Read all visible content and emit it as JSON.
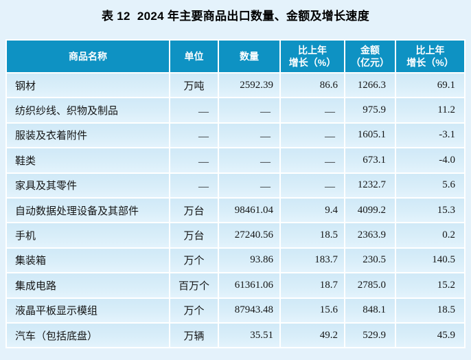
{
  "page": {
    "background_color": "#e4f2fb",
    "header_color": "#0e92c3",
    "header_text_color": "#ffffff",
    "row_color": "#d9eef9",
    "grid_line_color": "#ffffff",
    "body_text_color": "#151515"
  },
  "title": "表 12  2024 年主要商品出口数量、金额及增长速度",
  "table": {
    "columns": [
      {
        "key": "name",
        "label": "商品名称"
      },
      {
        "key": "unit",
        "label": "单位"
      },
      {
        "key": "quantity",
        "label": "数量"
      },
      {
        "key": "quantity_growth",
        "label": "比上年\n增长（%）"
      },
      {
        "key": "amount",
        "label": "金额\n（亿元）"
      },
      {
        "key": "amount_growth",
        "label": "比上年\n增长（%）"
      }
    ],
    "rows": [
      {
        "name": "钢材",
        "unit": "万吨",
        "quantity": "2592.39",
        "quantity_growth": "86.6",
        "amount": "1266.3",
        "amount_growth": "69.1"
      },
      {
        "name": "纺织纱线、织物及制品",
        "unit": "—",
        "quantity": "—",
        "quantity_growth": "—",
        "amount": "975.9",
        "amount_growth": "11.2"
      },
      {
        "name": "服装及衣着附件",
        "unit": "—",
        "quantity": "—",
        "quantity_growth": "—",
        "amount": "1605.1",
        "amount_growth": "-3.1"
      },
      {
        "name": "鞋类",
        "unit": "—",
        "quantity": "—",
        "quantity_growth": "—",
        "amount": "673.1",
        "amount_growth": "-4.0"
      },
      {
        "name": "家具及其零件",
        "unit": "—",
        "quantity": "—",
        "quantity_growth": "—",
        "amount": "1232.7",
        "amount_growth": "5.6"
      },
      {
        "name": "自动数据处理设备及其部件",
        "unit": "万台",
        "quantity": "98461.04",
        "quantity_growth": "9.4",
        "amount": "4099.2",
        "amount_growth": "15.3"
      },
      {
        "name": "手机",
        "unit": "万台",
        "quantity": "27240.56",
        "quantity_growth": "18.5",
        "amount": "2363.9",
        "amount_growth": "0.2"
      },
      {
        "name": "集装箱",
        "unit": "万个",
        "quantity": "93.86",
        "quantity_growth": "183.7",
        "amount": "230.5",
        "amount_growth": "140.5"
      },
      {
        "name": "集成电路",
        "unit": "百万个",
        "quantity": "61361.06",
        "quantity_growth": "18.7",
        "amount": "2785.0",
        "amount_growth": "15.2"
      },
      {
        "name": "液晶平板显示模组",
        "unit": "万个",
        "quantity": "87943.48",
        "quantity_growth": "15.6",
        "amount": "848.1",
        "amount_growth": "18.5"
      },
      {
        "name": "汽车（包括底盘）",
        "unit": "万辆",
        "quantity": "35.51",
        "quantity_growth": "49.2",
        "amount": "529.9",
        "amount_growth": "45.9"
      }
    ]
  }
}
